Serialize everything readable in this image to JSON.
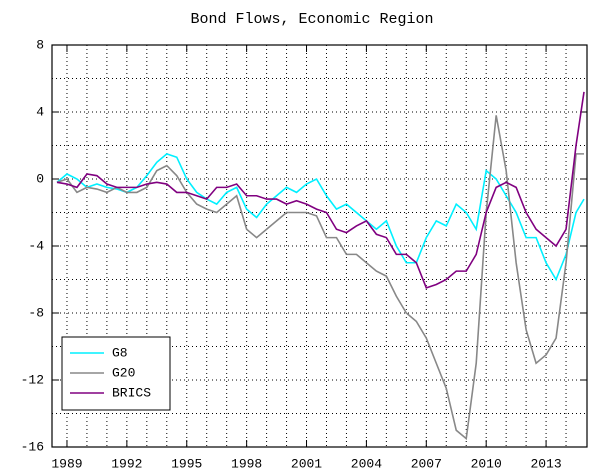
{
  "chart_data": {
    "type": "line",
    "title": "Bond Flows, Economic Region",
    "x": [
      1988.5,
      1989,
      1989.5,
      1990,
      1990.5,
      1991,
      1991.5,
      1992,
      1992.5,
      1993,
      1993.5,
      1994,
      1994.5,
      1995,
      1995.5,
      1996,
      1996.5,
      1997,
      1997.5,
      1998,
      1998.5,
      1999,
      1999.5,
      2000,
      2000.5,
      2001,
      2001.5,
      2002,
      2002.5,
      2003,
      2003.5,
      2004,
      2004.5,
      2005,
      2005.5,
      2006,
      2006.5,
      2007,
      2007.5,
      2008,
      2008.5,
      2009,
      2009.5,
      2010,
      2010.5,
      2011,
      2011.5,
      2012,
      2012.5,
      2013,
      2013.5,
      2014,
      2014.5,
      2014.9
    ],
    "series": [
      {
        "name": "G8",
        "color": "#00f0ff",
        "values": [
          -0.2,
          0.3,
          0.0,
          -0.5,
          -0.3,
          -0.5,
          -0.6,
          -0.8,
          -0.5,
          0.2,
          1.0,
          1.5,
          1.3,
          0.0,
          -0.8,
          -1.2,
          -1.5,
          -0.8,
          -0.5,
          -1.8,
          -2.3,
          -1.5,
          -1.0,
          -0.5,
          -0.8,
          -0.3,
          0.0,
          -1.0,
          -1.8,
          -1.5,
          -2.0,
          -2.5,
          -3.0,
          -2.5,
          -4.0,
          -5.0,
          -5.0,
          -3.5,
          -2.5,
          -2.8,
          -1.5,
          -2.0,
          -3.0,
          0.5,
          0.0,
          -1.0,
          -2.0,
          -3.5,
          -3.5,
          -5.0,
          -6.0,
          -4.5,
          -2.0,
          -1.2
        ]
      },
      {
        "name": "G20",
        "color": "#888888",
        "values": [
          -0.2,
          0.0,
          -0.8,
          -0.5,
          -0.6,
          -0.8,
          -0.5,
          -0.8,
          -0.8,
          -0.5,
          0.5,
          0.8,
          0.2,
          -0.8,
          -1.5,
          -1.8,
          -2.0,
          -1.5,
          -1.0,
          -3.0,
          -3.5,
          -3.0,
          -2.5,
          -2.0,
          -2.0,
          -2.0,
          -2.2,
          -3.5,
          -3.5,
          -4.5,
          -4.5,
          -5.0,
          -5.5,
          -5.8,
          -7.0,
          -8.0,
          -8.5,
          -9.5,
          -11.0,
          -12.5,
          -15.0,
          -15.5,
          -11.0,
          -2.0,
          3.8,
          0.5,
          -5.0,
          -9.0,
          -11.0,
          -10.5,
          -9.5,
          -5.0,
          1.5,
          1.5
        ]
      },
      {
        "name": "BRICS",
        "color": "#800080",
        "values": [
          -0.2,
          -0.3,
          -0.5,
          0.3,
          0.2,
          -0.3,
          -0.5,
          -0.5,
          -0.5,
          -0.3,
          -0.2,
          -0.3,
          -0.8,
          -0.8,
          -1.0,
          -1.2,
          -0.5,
          -0.5,
          -0.3,
          -1.0,
          -1.0,
          -1.2,
          -1.2,
          -1.5,
          -1.3,
          -1.5,
          -1.8,
          -2.0,
          -3.0,
          -3.2,
          -2.8,
          -2.5,
          -3.3,
          -3.5,
          -4.5,
          -4.5,
          -5.0,
          -6.5,
          -6.3,
          -6.0,
          -5.5,
          -5.5,
          -4.5,
          -2.0,
          -0.5,
          -0.2,
          -0.5,
          -2.0,
          -3.0,
          -3.5,
          -4.0,
          -3.0,
          2.0,
          5.2
        ]
      }
    ],
    "xlim": [
      1988.25,
      2015.05
    ],
    "xticks": [
      1989,
      1992,
      1995,
      1998,
      2001,
      2004,
      2007,
      2010,
      2013
    ],
    "xminorticks": [
      1990,
      1991,
      1993,
      1994,
      1996,
      1997,
      1999,
      2000,
      2002,
      2003,
      2005,
      2006,
      2008,
      2009,
      2011,
      2012,
      2014
    ],
    "ylim": [
      -16,
      8
    ],
    "yticks": [
      -16,
      -12,
      -8,
      -4,
      0,
      4,
      8
    ],
    "yminorticks": [
      -14,
      -10,
      -6,
      -2,
      2,
      6
    ],
    "grid": true,
    "legend": "lower left"
  }
}
